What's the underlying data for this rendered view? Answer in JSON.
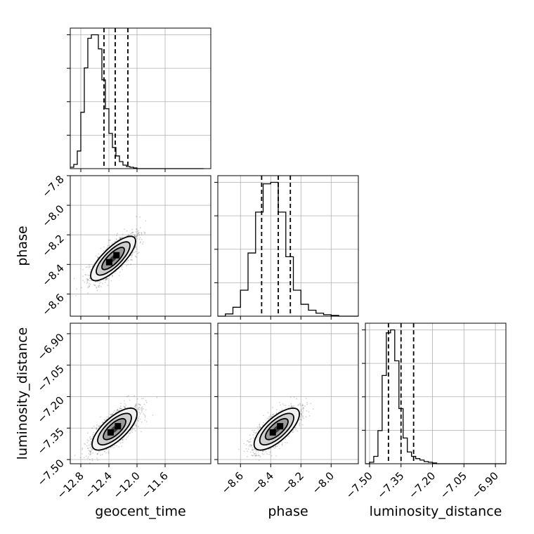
{
  "chart_data": {
    "type": "corner",
    "parameters": [
      "geocent_time",
      "phase",
      "luminosity_distance"
    ],
    "grid": true,
    "diagonal": [
      {
        "name": "geocent_time",
        "xlim": [
          -12.95,
          -11.05
        ],
        "bin_width": 0.05,
        "bin_start": -12.95,
        "counts": [
          2,
          6,
          25,
          80,
          143,
          185,
          190,
          190,
          170,
          126,
          85,
          50,
          30,
          18,
          10,
          5,
          3,
          2,
          1,
          0,
          0,
          0,
          0,
          0,
          0,
          0,
          0,
          0,
          0,
          0,
          0,
          0,
          0,
          0,
          0,
          0,
          0,
          0
        ],
        "quantiles": [
          -12.47,
          -12.31,
          -12.13
        ],
        "ticks": [
          -12.8,
          -12.4,
          -12.0,
          -11.6
        ],
        "tick_labels": [
          "−12.8",
          "−12.4",
          "−12.0",
          "−11.6"
        ]
      },
      {
        "name": "phase",
        "ylim": [
          -7.8,
          -8.75
        ],
        "xlim": [
          -8.75,
          -7.8
        ],
        "bin_width": 0.05,
        "bin_start": -8.75,
        "counts": [
          0,
          3,
          12,
          35,
          85,
          140,
          178,
          180,
          140,
          80,
          35,
          16,
          8,
          4,
          2,
          1,
          0,
          0,
          0
        ],
        "quantiles": [
          -8.46,
          -8.35,
          -8.27
        ],
        "ticks": [
          -8.6,
          -8.4,
          -8.2,
          -8.0,
          -7.8
        ],
        "tick_labels": [
          "−8.6",
          "−8.4",
          "−8.2",
          "−8.0",
          "−7.8"
        ]
      },
      {
        "name": "luminosity_distance",
        "xlim": [
          -7.52,
          -6.85
        ],
        "bin_width": 0.02,
        "bin_start": -7.52,
        "counts": [
          0,
          2,
          10,
          45,
          120,
          178,
          182,
          140,
          75,
          35,
          16,
          10,
          7,
          5,
          3,
          2,
          1,
          0,
          0,
          0,
          0,
          0,
          0,
          0,
          0,
          0,
          0,
          0,
          0,
          0,
          0,
          0,
          0,
          0
        ],
        "quantiles": [
          -7.41,
          -7.35,
          -7.29
        ],
        "ticks": [
          -7.5,
          -7.35,
          -7.2,
          -7.05,
          -6.9
        ],
        "tick_labels": [
          "−7.50",
          "−7.35",
          "−7.20",
          "−7.05",
          "−6.90"
        ]
      }
    ],
    "pairs": [
      {
        "x": "geocent_time",
        "y": "phase",
        "center": [
          -12.34,
          -8.36
        ],
        "sigma": [
          0.16,
          0.075
        ],
        "rho": 0.78
      },
      {
        "x": "geocent_time",
        "y": "luminosity_distance",
        "center": [
          -12.32,
          -7.355
        ],
        "sigma": [
          0.16,
          0.05
        ],
        "rho": 0.72
      },
      {
        "x": "phase",
        "y": "luminosity_distance",
        "center": [
          -8.36,
          -7.355
        ],
        "sigma": [
          0.075,
          0.05
        ],
        "rho": 0.72
      }
    ],
    "axis_labels": {
      "x": [
        "geocent_time",
        "phase",
        "luminosity_distance"
      ],
      "y": [
        "phase",
        "luminosity_distance"
      ]
    }
  }
}
